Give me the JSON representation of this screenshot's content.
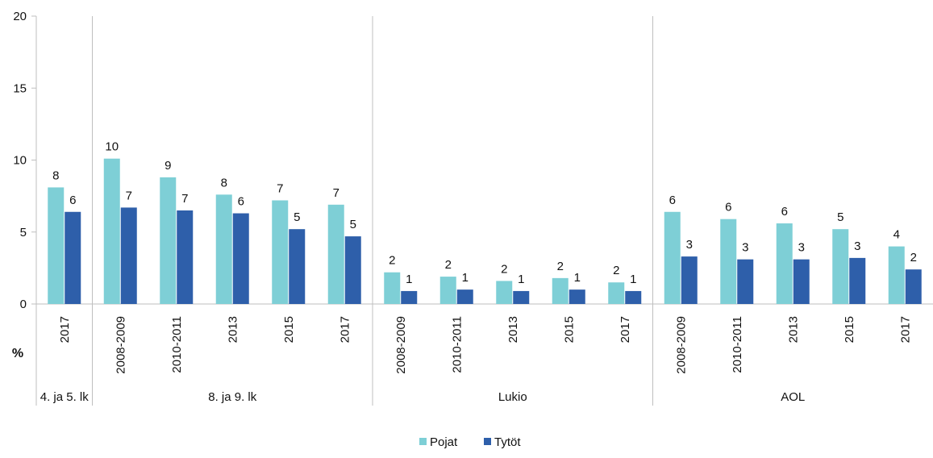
{
  "chart_data": {
    "type": "bar",
    "ylabel": "%",
    "ylim": [
      0,
      20
    ],
    "yticks": [
      0,
      5,
      10,
      15,
      20
    ],
    "grid": false,
    "legend_position": "bottom-center",
    "groups": [
      {
        "name": "4. ja 5. lk",
        "categories": [
          "2017"
        ]
      },
      {
        "name": "8. ja 9. lk",
        "categories": [
          "2008-2009",
          "2010-2011",
          "2013",
          "2015",
          "2017"
        ]
      },
      {
        "name": "Lukio",
        "categories": [
          "2008-2009",
          "2010-2011",
          "2013",
          "2015",
          "2017"
        ]
      },
      {
        "name": "AOL",
        "categories": [
          "2008-2009",
          "2010-2011",
          "2013",
          "2015",
          "2017"
        ]
      }
    ],
    "series": [
      {
        "name": "Pojat",
        "color": "#7ecfd6",
        "values": [
          8.1,
          10.1,
          8.8,
          7.6,
          7.2,
          6.9,
          2.2,
          1.9,
          1.6,
          1.8,
          1.5,
          6.4,
          5.9,
          5.6,
          5.2,
          4.0
        ],
        "labels": [
          "8",
          "10",
          "9",
          "8",
          "7",
          "7",
          "2",
          "2",
          "2",
          "2",
          "2",
          "6",
          "6",
          "6",
          "5",
          "4"
        ]
      },
      {
        "name": "Tytöt",
        "color": "#2e5faa",
        "values": [
          6.4,
          6.7,
          6.5,
          6.3,
          5.2,
          4.7,
          0.9,
          1.0,
          0.9,
          1.0,
          0.9,
          3.3,
          3.1,
          3.1,
          3.2,
          2.4
        ],
        "labels": [
          "6",
          "7",
          "7",
          "6",
          "5",
          "5",
          "1",
          "1",
          "1",
          "1",
          "1",
          "3",
          "3",
          "3",
          "3",
          "2"
        ]
      }
    ]
  }
}
